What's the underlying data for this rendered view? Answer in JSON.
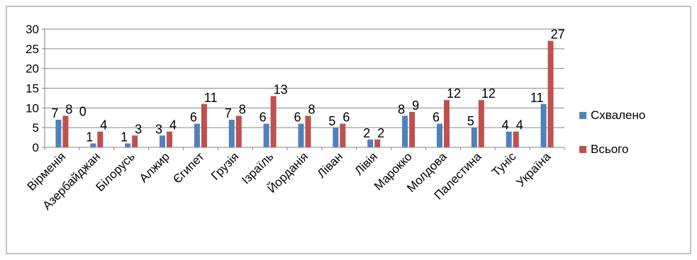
{
  "chart_data": {
    "type": "bar",
    "categories": [
      "Вірменія",
      "Азербайджан",
      "Білорусь",
      "Алжир",
      "Єгипет",
      "Грузія",
      "Ізраїль",
      "Йорданія",
      "Ліван",
      "Лівія",
      "Марокко",
      "Молдова",
      "Палестина",
      "Туніс",
      "Україна"
    ],
    "series": [
      {
        "name": "Схвалено",
        "color": "#4F81BD",
        "values": [
          7,
          1,
          1,
          3,
          6,
          7,
          6,
          6,
          5,
          2,
          8,
          6,
          5,
          4,
          11
        ],
        "labels": [
          "7",
          "1",
          "1",
          "3",
          "6",
          "7",
          "6",
          "6",
          "5",
          "2",
          "8",
          "6",
          "5",
          "4",
          "11"
        ]
      },
      {
        "name": "Всього",
        "color": "#C0504D",
        "values": [
          8,
          4,
          3,
          4,
          11,
          8,
          13,
          8,
          6,
          2,
          9,
          12,
          12,
          4,
          27
        ],
        "labels": [
          "8",
          "4",
          "3",
          "4",
          "11",
          "8",
          "13",
          "8",
          "6",
          "2",
          "9",
          "12",
          "12",
          "4",
          "27"
        ]
      }
    ],
    "extra_labels": [
      "0"
    ],
    "yticks": [
      "0",
      "5",
      "10",
      "15",
      "20",
      "25",
      "30"
    ],
    "ylim": [
      0,
      30
    ],
    "grid": true,
    "legend_position": "right"
  }
}
